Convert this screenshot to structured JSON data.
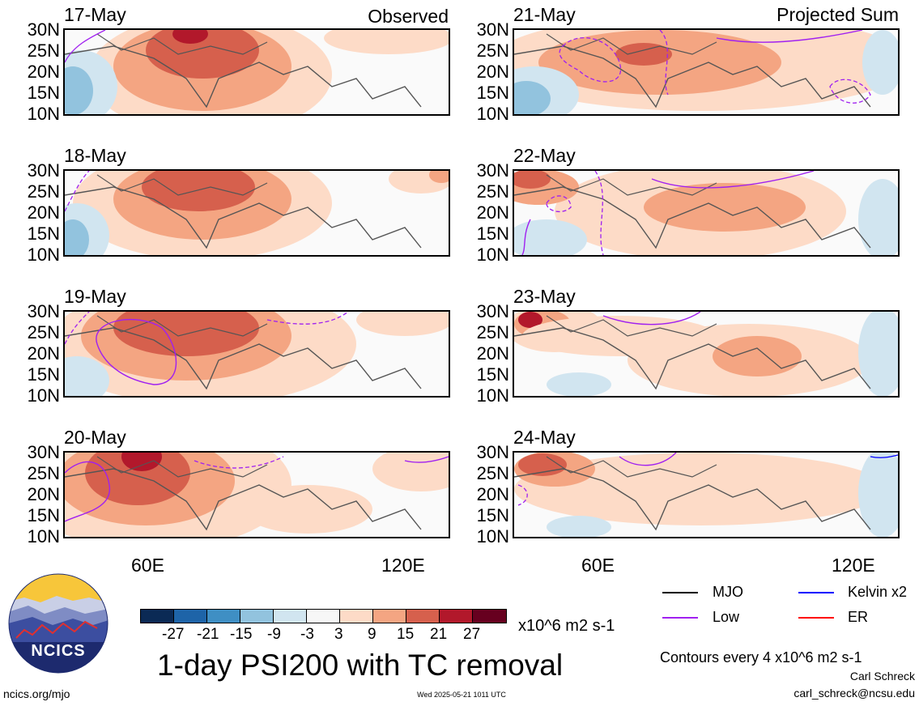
{
  "panels_left": [
    {
      "date": "17-May",
      "tag": "Observed"
    },
    {
      "date": "18-May",
      "tag": ""
    },
    {
      "date": "19-May",
      "tag": ""
    },
    {
      "date": "20-May",
      "tag": ""
    }
  ],
  "panels_right": [
    {
      "date": "21-May",
      "tag": "Projected Sum"
    },
    {
      "date": "22-May",
      "tag": ""
    },
    {
      "date": "23-May",
      "tag": ""
    },
    {
      "date": "24-May",
      "tag": ""
    }
  ],
  "lat_labels": [
    "30N",
    "25N",
    "20N",
    "15N",
    "10N"
  ],
  "lon_labels": [
    "60E",
    "120E"
  ],
  "colorbar": {
    "colors": [
      "#0b2a55",
      "#1e64a8",
      "#3f8fc4",
      "#92c3de",
      "#d1e5f0",
      "#f7f7f7",
      "#fddbc7",
      "#f4a582",
      "#d6604d",
      "#b2182b",
      "#67001f"
    ],
    "labels": [
      "-27",
      "-21",
      "-15",
      "-9",
      "-3",
      "3",
      "9",
      "15",
      "21",
      "27"
    ],
    "units": "x10^6 m2 s-1"
  },
  "title": "1-day PSI200 with TC removal",
  "legend": [
    {
      "label": "MJO",
      "color": "#000000"
    },
    {
      "label": "Kelvin x2",
      "color": "#0000ff"
    },
    {
      "label": "Low",
      "color": "#a020f0"
    },
    {
      "label": "ER",
      "color": "#ff0000"
    }
  ],
  "contour_note": "Contours every 4 x10^6 m2 s-1",
  "author": "Carl Schreck",
  "email": "carl_schreck@ncsu.edu",
  "url": "ncics.org/mjo",
  "timestamp": "Wed 2025-05-21 1011 UTC",
  "logo_text": "NCICS"
}
